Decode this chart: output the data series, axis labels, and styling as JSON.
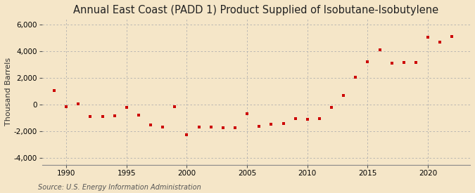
{
  "title": "Annual East Coast (PADD 1) Product Supplied of Isobutane-Isobutylene",
  "ylabel": "Thousand Barrels",
  "source": "Source: U.S. Energy Information Administration",
  "background_color": "#f5e6c8",
  "plot_bg_color": "#f5e6c8",
  "marker_color": "#cc0000",
  "years": [
    1989,
    1990,
    1991,
    1992,
    1993,
    1994,
    1995,
    1996,
    1997,
    1998,
    1999,
    2000,
    2001,
    2002,
    2003,
    2004,
    2005,
    2006,
    2007,
    2008,
    2009,
    2010,
    2011,
    2012,
    2013,
    2014,
    2015,
    2016,
    2017,
    2018,
    2019,
    2020,
    2021,
    2022
  ],
  "values": [
    1050,
    -150,
    50,
    -900,
    -900,
    -850,
    -200,
    -800,
    -1500,
    -1700,
    -150,
    -2250,
    -1700,
    -1650,
    -1750,
    -1750,
    -650,
    -1600,
    -1450,
    -1400,
    -1050,
    -1100,
    -1050,
    -200,
    700,
    2050,
    3250,
    4100,
    3100,
    3150,
    3150,
    5050,
    4700,
    5150
  ],
  "ylim": [
    -4500,
    6500
  ],
  "yticks": [
    -4000,
    -2000,
    0,
    2000,
    4000,
    6000
  ],
  "xlim": [
    1988.0,
    2023.5
  ],
  "xticks": [
    1990,
    1995,
    2000,
    2005,
    2010,
    2015,
    2020
  ],
  "grid_color": "#b0b0b0",
  "title_fontsize": 10.5,
  "label_fontsize": 8,
  "tick_fontsize": 7.5,
  "source_fontsize": 7
}
